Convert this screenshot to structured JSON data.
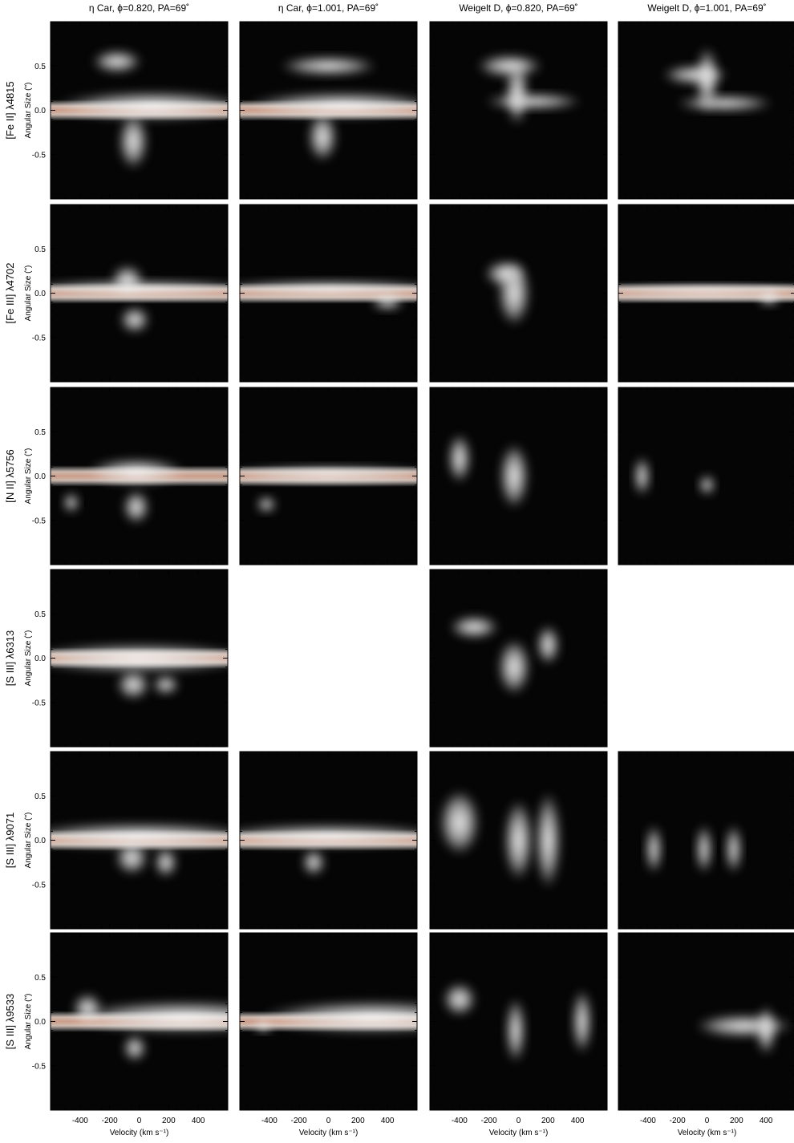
{
  "columns": [
    {
      "title": "η Car,  ϕ=0.820, PA=69˚"
    },
    {
      "title": "η Car,  ϕ=1.001, PA=69˚"
    },
    {
      "title": "Weigelt D, ϕ=0.820,  PA=69˚"
    },
    {
      "title": "Weigelt D, ϕ=1.001,  PA=69˚"
    }
  ],
  "rows": [
    {
      "label": "[Fe II] λ4815",
      "present": [
        true,
        true,
        true,
        true
      ]
    },
    {
      "label": "[Fe III] λ4702",
      "present": [
        true,
        true,
        true,
        true
      ]
    },
    {
      "label": "[N II] λ5756",
      "present": [
        true,
        true,
        true,
        true
      ]
    },
    {
      "label": "[S III] λ6313",
      "present": [
        true,
        false,
        true,
        false
      ]
    },
    {
      "label": "[S III] λ9071",
      "present": [
        true,
        true,
        true,
        true
      ]
    },
    {
      "label": "[S III] λ9533",
      "present": [
        true,
        true,
        true,
        true
      ]
    }
  ],
  "y_axis_label": "Angular Size (\")",
  "y_ticks": [
    "0.5",
    "0.0",
    "-0.5"
  ],
  "x_ticks": [
    "-400",
    "-200",
    "0",
    "200",
    "400"
  ],
  "x_axis_label": "Velocity (km s⁻¹)",
  "chart_data": {
    "type": "heatmap",
    "xlabel": "Velocity (km s⁻¹)",
    "ylabel": "Angular Size (\")",
    "xlim": [
      -600,
      600
    ],
    "ylim": [
      -1.0,
      1.0
    ],
    "x_ticks": [
      -400,
      -200,
      0,
      200,
      400
    ],
    "y_ticks": [
      0.5,
      0.0,
      -0.5
    ],
    "colormap": "greyscale",
    "grid": false
  }
}
